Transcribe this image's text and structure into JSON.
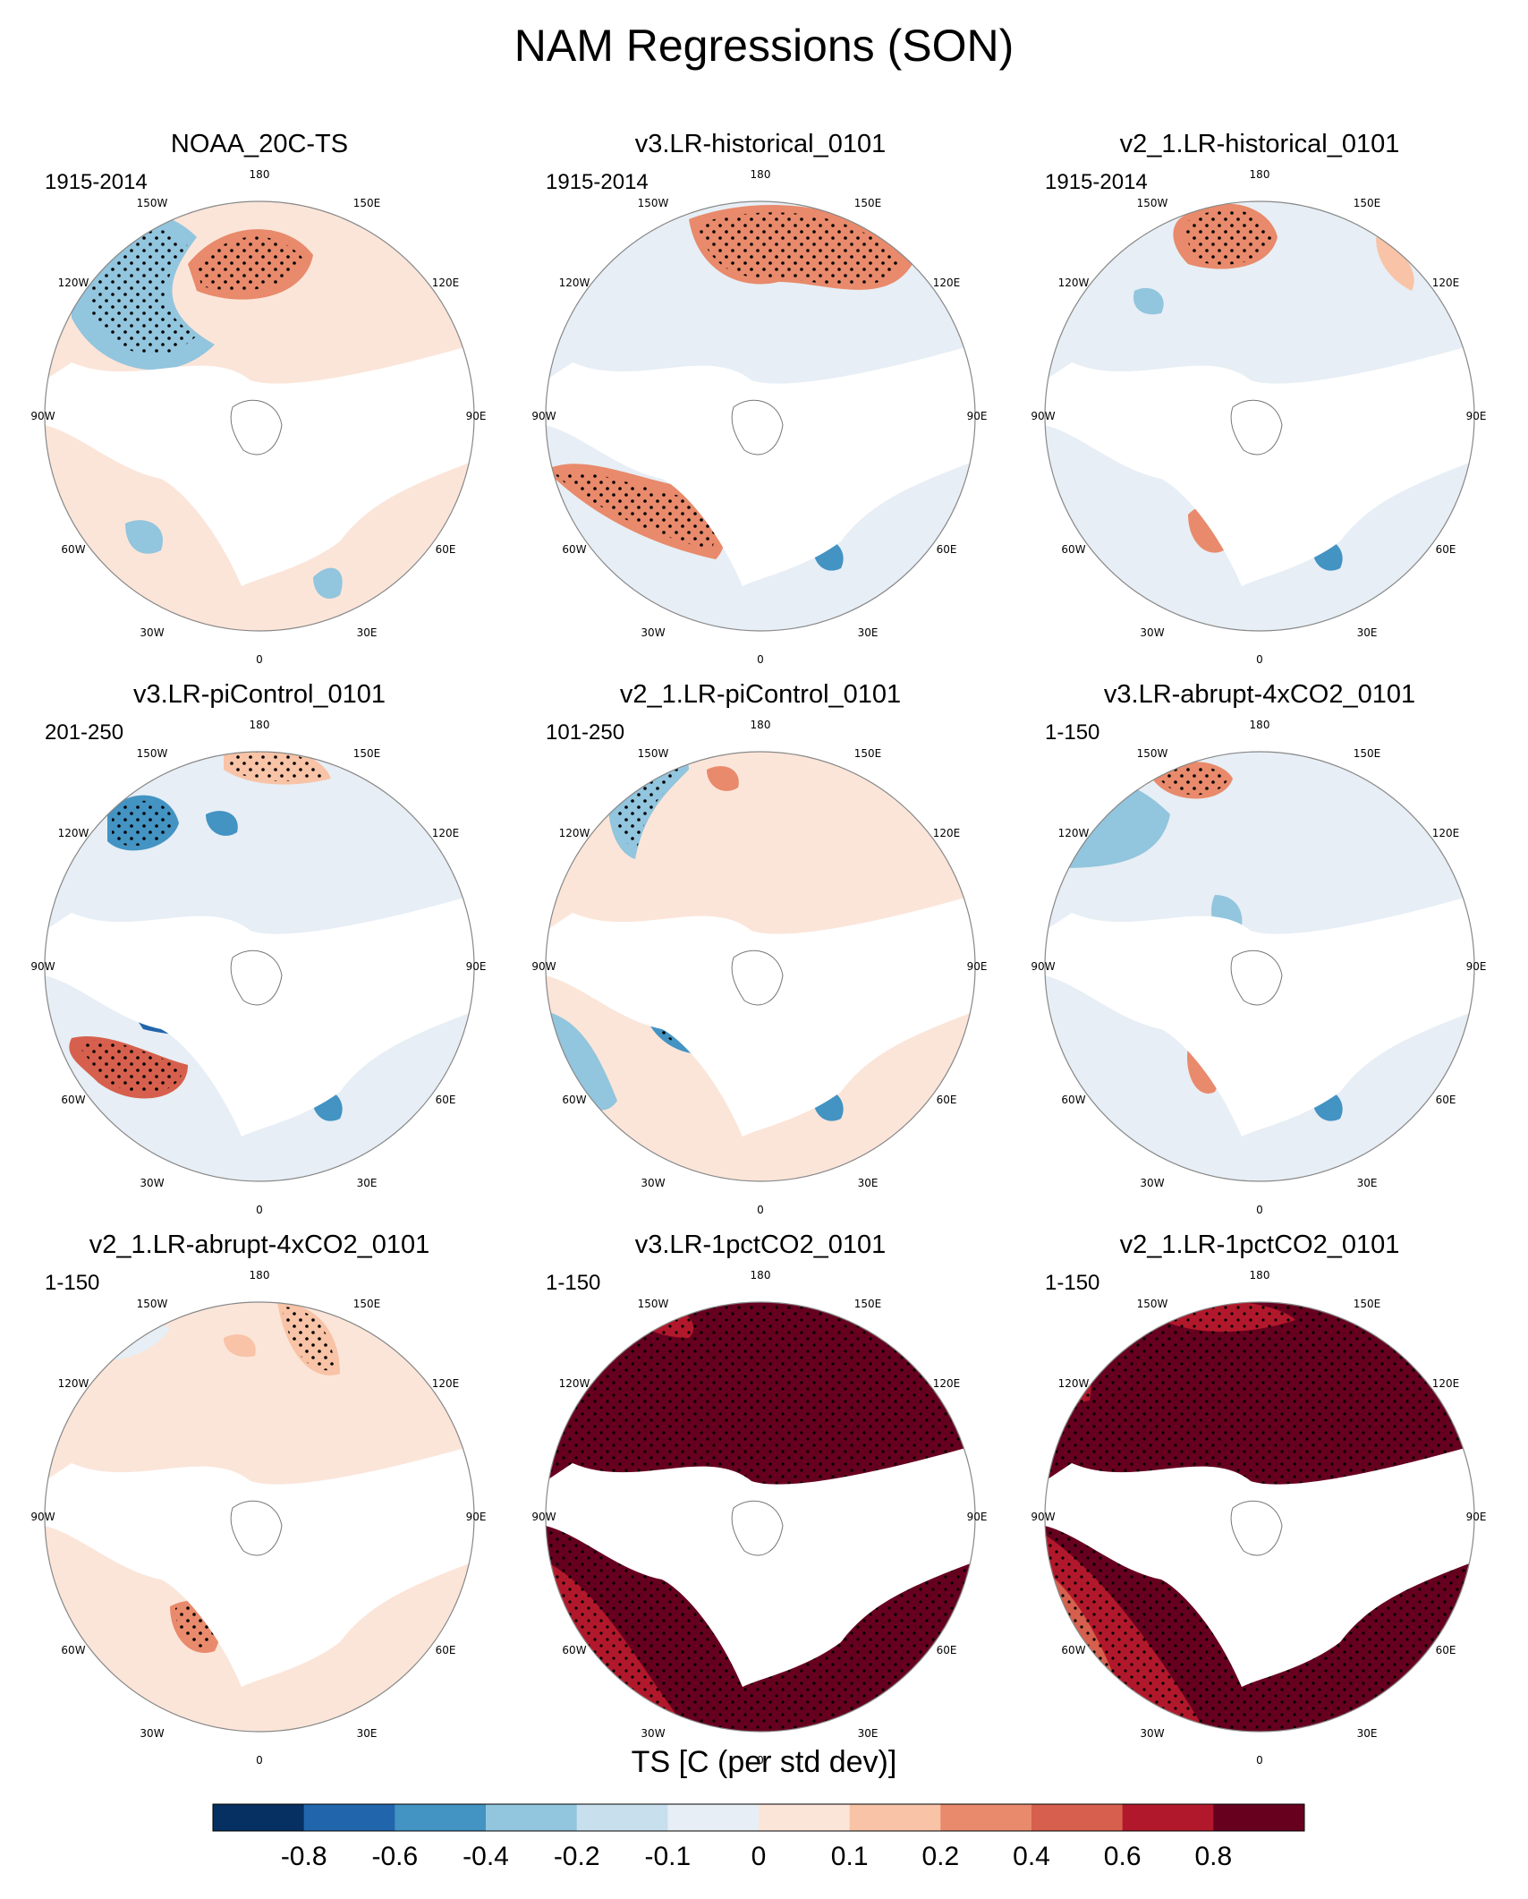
{
  "title": "NAM Regressions (SON)",
  "lon_labels": [
    "180",
    "150E",
    "120E",
    "90E",
    "60E",
    "30E",
    "0",
    "30W",
    "60W",
    "90W",
    "120W",
    "150W"
  ],
  "panels": [
    {
      "title": "NOAA_20C-TS",
      "period": "1915-2014"
    },
    {
      "title": "v3.LR-historical_0101",
      "period": "1915-2014"
    },
    {
      "title": "v2_1.LR-historical_0101",
      "period": "1915-2014"
    },
    {
      "title": "v3.LR-piControl_0101",
      "period": "201-250"
    },
    {
      "title": "v2_1.LR-piControl_0101",
      "period": "101-250"
    },
    {
      "title": "v3.LR-abrupt-4xCO2_0101",
      "period": "1-150"
    },
    {
      "title": "v2_1.LR-abrupt-4xCO2_0101",
      "period": "1-150"
    },
    {
      "title": "v3.LR-1pctCO2_0101",
      "period": "1-150"
    },
    {
      "title": "v2_1.LR-1pctCO2_0101",
      "period": "1-150"
    }
  ],
  "colorbar": {
    "title": "TS [C (per std dev)]",
    "ticks": [
      "-0.8",
      "-0.6",
      "-0.4",
      "-0.2",
      "-0.1",
      "0",
      "0.1",
      "0.2",
      "0.4",
      "0.6",
      "0.8"
    ],
    "colors": [
      "#053061",
      "#2166ac",
      "#4393c3",
      "#92c5de",
      "#c8dfee",
      "#e7eef5",
      "#fbe5d9",
      "#f8c3a6",
      "#e88a6b",
      "#d6604d",
      "#b2182b",
      "#67001f"
    ]
  }
}
